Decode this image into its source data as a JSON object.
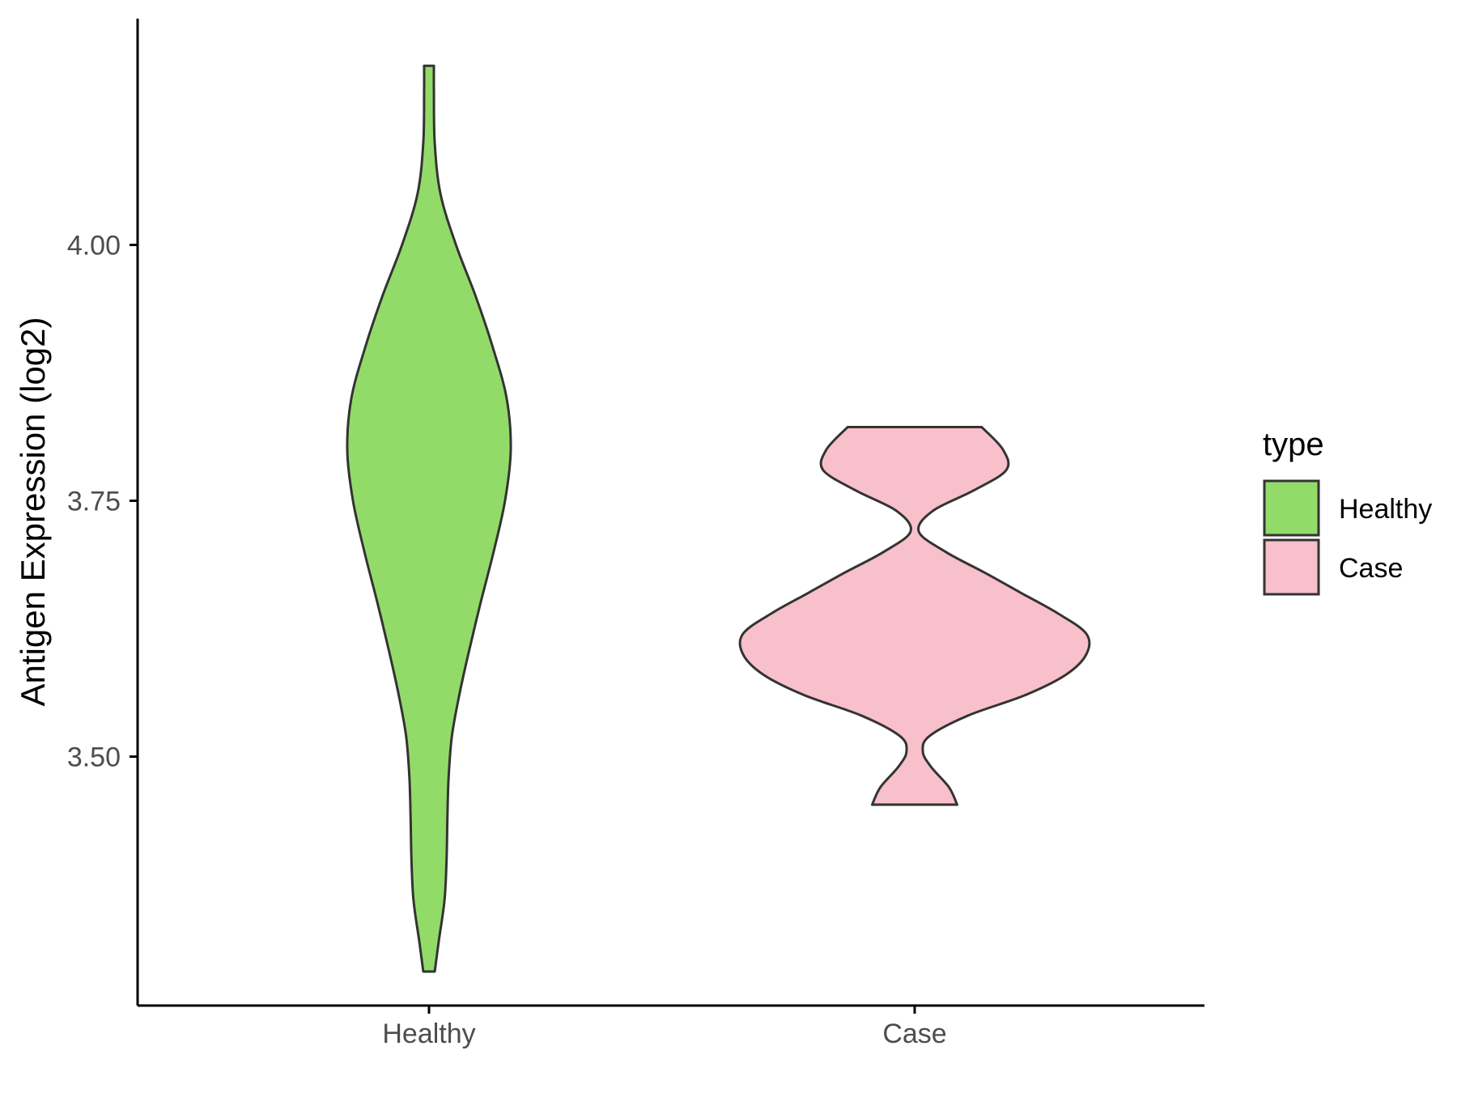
{
  "chart_data": {
    "type": "violin",
    "title": "",
    "xlabel": "",
    "ylabel": "Antigen Expression (log2)",
    "categories": [
      "Healthy",
      "Case"
    ],
    "y_ticks": [
      {
        "value": 3.5,
        "label": "3.50"
      },
      {
        "value": 3.75,
        "label": "3.75"
      },
      {
        "value": 4.0,
        "label": "4.00"
      }
    ],
    "ylim": [
      3.26,
      4.22
    ],
    "grid": false,
    "legend": {
      "title": "type",
      "position": "right",
      "entries": [
        {
          "label": "Healthy",
          "color": "#93DB69"
        },
        {
          "label": "Case",
          "color": "#F7C0CB"
        }
      ]
    },
    "series": [
      {
        "name": "Healthy",
        "color": "#93DB69",
        "min": 3.29,
        "max": 4.175,
        "density_profile": [
          [
            3.29,
            0.07
          ],
          [
            3.32,
            0.12
          ],
          [
            3.36,
            0.19
          ],
          [
            3.4,
            0.215
          ],
          [
            3.44,
            0.225
          ],
          [
            3.48,
            0.24
          ],
          [
            3.52,
            0.28
          ],
          [
            3.56,
            0.37
          ],
          [
            3.6,
            0.48
          ],
          [
            3.65,
            0.63
          ],
          [
            3.7,
            0.79
          ],
          [
            3.75,
            0.93
          ],
          [
            3.8,
            1.0
          ],
          [
            3.85,
            0.95
          ],
          [
            3.9,
            0.78
          ],
          [
            3.95,
            0.57
          ],
          [
            4.0,
            0.33
          ],
          [
            4.05,
            0.14
          ],
          [
            4.1,
            0.07
          ],
          [
            4.15,
            0.06
          ],
          [
            4.175,
            0.06
          ]
        ]
      },
      {
        "name": "Case",
        "color": "#F7C0CB",
        "min": 3.453,
        "max": 3.822,
        "density_profile": [
          [
            3.453,
            0.52
          ],
          [
            3.47,
            0.42
          ],
          [
            3.49,
            0.2
          ],
          [
            3.505,
            0.1
          ],
          [
            3.52,
            0.18
          ],
          [
            3.54,
            0.65
          ],
          [
            3.56,
            1.35
          ],
          [
            3.58,
            1.85
          ],
          [
            3.6,
            2.1
          ],
          [
            3.62,
            2.1
          ],
          [
            3.64,
            1.75
          ],
          [
            3.66,
            1.3
          ],
          [
            3.68,
            0.85
          ],
          [
            3.7,
            0.38
          ],
          [
            3.72,
            0.05
          ],
          [
            3.74,
            0.22
          ],
          [
            3.76,
            0.72
          ],
          [
            3.78,
            1.12
          ],
          [
            3.8,
            1.08
          ],
          [
            3.822,
            0.82
          ]
        ]
      }
    ]
  }
}
